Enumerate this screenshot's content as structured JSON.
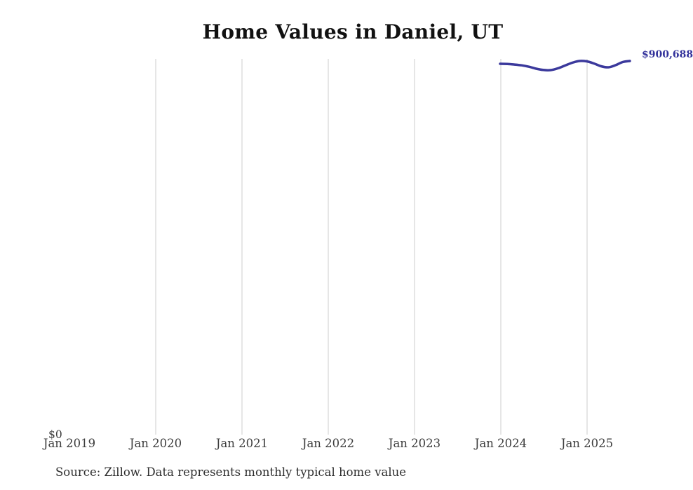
{
  "chart": {
    "title": "Home Values in Daniel, UT",
    "source_note": "Source: Zillow. Data represents monthly typical home value",
    "y_zero_label": "$0",
    "end_label": "$900,688",
    "x_ticks": [
      "Jan 2019",
      "Jan 2020",
      "Jan 2021",
      "Jan 2022",
      "Jan 2023",
      "Jan 2024",
      "Jan 2025"
    ],
    "colors": {
      "line": "#3b399c",
      "end_label": "#33329b",
      "gridline": "#cccccc",
      "title_text": "#111111",
      "axis_text": "#3d3d3d",
      "background": "#ffffff"
    }
  },
  "chart_data": {
    "type": "line",
    "title": "Home Values in Daniel, UT",
    "xlabel": "",
    "ylabel": "",
    "x_axis_ticks": [
      "Jan 2019",
      "Jan 2020",
      "Jan 2021",
      "Jan 2022",
      "Jan 2023",
      "Jan 2024",
      "Jan 2025"
    ],
    "y_axis_ticks": [
      "$0"
    ],
    "ylim": [
      0,
      905000
    ],
    "grid": "vertical-only",
    "legend": "none",
    "x": [
      "Jan 2024",
      "Feb 2024",
      "Mar 2024",
      "Apr 2024",
      "May 2024",
      "Jun 2024",
      "Jul 2024",
      "Aug 2024",
      "Sep 2024",
      "Oct 2024",
      "Nov 2024",
      "Dec 2024",
      "Jan 2025",
      "Feb 2025",
      "Mar 2025",
      "Apr 2025",
      "May 2025",
      "Jun 2025",
      "Jul 2025"
    ],
    "series": [
      {
        "name": "Monthly typical home value",
        "values": [
          894000,
          893400,
          892100,
          890200,
          886900,
          882100,
          879000,
          878700,
          883000,
          889700,
          896400,
          900700,
          899900,
          894800,
          888000,
          885400,
          890500,
          898100,
          900688
        ]
      }
    ],
    "annotations": [
      {
        "text": "$900,688",
        "position": "end-of-line"
      }
    ],
    "source_note": "Source: Zillow. Data represents monthly typical home value"
  }
}
